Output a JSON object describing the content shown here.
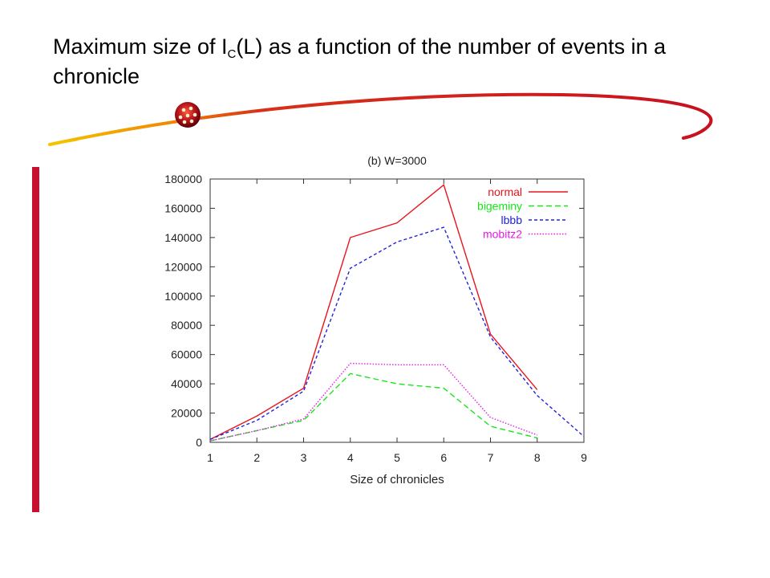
{
  "slide": {
    "title_before": "Maximum size of I",
    "title_sub": "C",
    "title_after": "(L) as a function of the number of events in a chronicle"
  },
  "colors": {
    "accent_red": "#c8102e",
    "swoosh_orange": "#f2a100",
    "swoosh_red": "#cc1020"
  },
  "chart_data": {
    "type": "line",
    "title": "(b) W=3000",
    "xlabel": "Size of chronicles",
    "ylabel": "",
    "xlim": [
      1,
      9
    ],
    "ylim": [
      0,
      180000
    ],
    "x_ticks": [
      1,
      2,
      3,
      4,
      5,
      6,
      7,
      8,
      9
    ],
    "y_ticks": [
      0,
      20000,
      40000,
      60000,
      80000,
      100000,
      120000,
      140000,
      160000,
      180000
    ],
    "grid": false,
    "legend_position": "top-right",
    "series": [
      {
        "name": "normal",
        "color": "#e8141c",
        "dash": "solid",
        "points": [
          [
            1,
            2000
          ],
          [
            2,
            18000
          ],
          [
            3,
            37000
          ],
          [
            4,
            140000
          ],
          [
            5,
            150000
          ],
          [
            6,
            176000
          ],
          [
            7,
            74000
          ],
          [
            8,
            36000
          ]
        ]
      },
      {
        "name": "bigeminy",
        "color": "#19e619",
        "dash": "long-dash",
        "points": [
          [
            1,
            1000
          ],
          [
            2,
            8000
          ],
          [
            3,
            15000
          ],
          [
            4,
            47000
          ],
          [
            5,
            40000
          ],
          [
            6,
            37000
          ],
          [
            7,
            11000
          ],
          [
            8,
            3000
          ]
        ]
      },
      {
        "name": "lbbb",
        "color": "#2222dd",
        "dash": "short-dash",
        "points": [
          [
            1,
            2000
          ],
          [
            2,
            15000
          ],
          [
            3,
            35000
          ],
          [
            4,
            119000
          ],
          [
            5,
            137000
          ],
          [
            6,
            147000
          ],
          [
            7,
            72000
          ],
          [
            8,
            32000
          ],
          [
            9,
            4000
          ]
        ]
      },
      {
        "name": "mobitz2",
        "color": "#e619e6",
        "dash": "dotted",
        "points": [
          [
            1,
            1000
          ],
          [
            2,
            8000
          ],
          [
            3,
            16000
          ],
          [
            4,
            54000
          ],
          [
            5,
            53000
          ],
          [
            6,
            53000
          ],
          [
            7,
            17000
          ],
          [
            8,
            5000
          ]
        ]
      }
    ]
  }
}
